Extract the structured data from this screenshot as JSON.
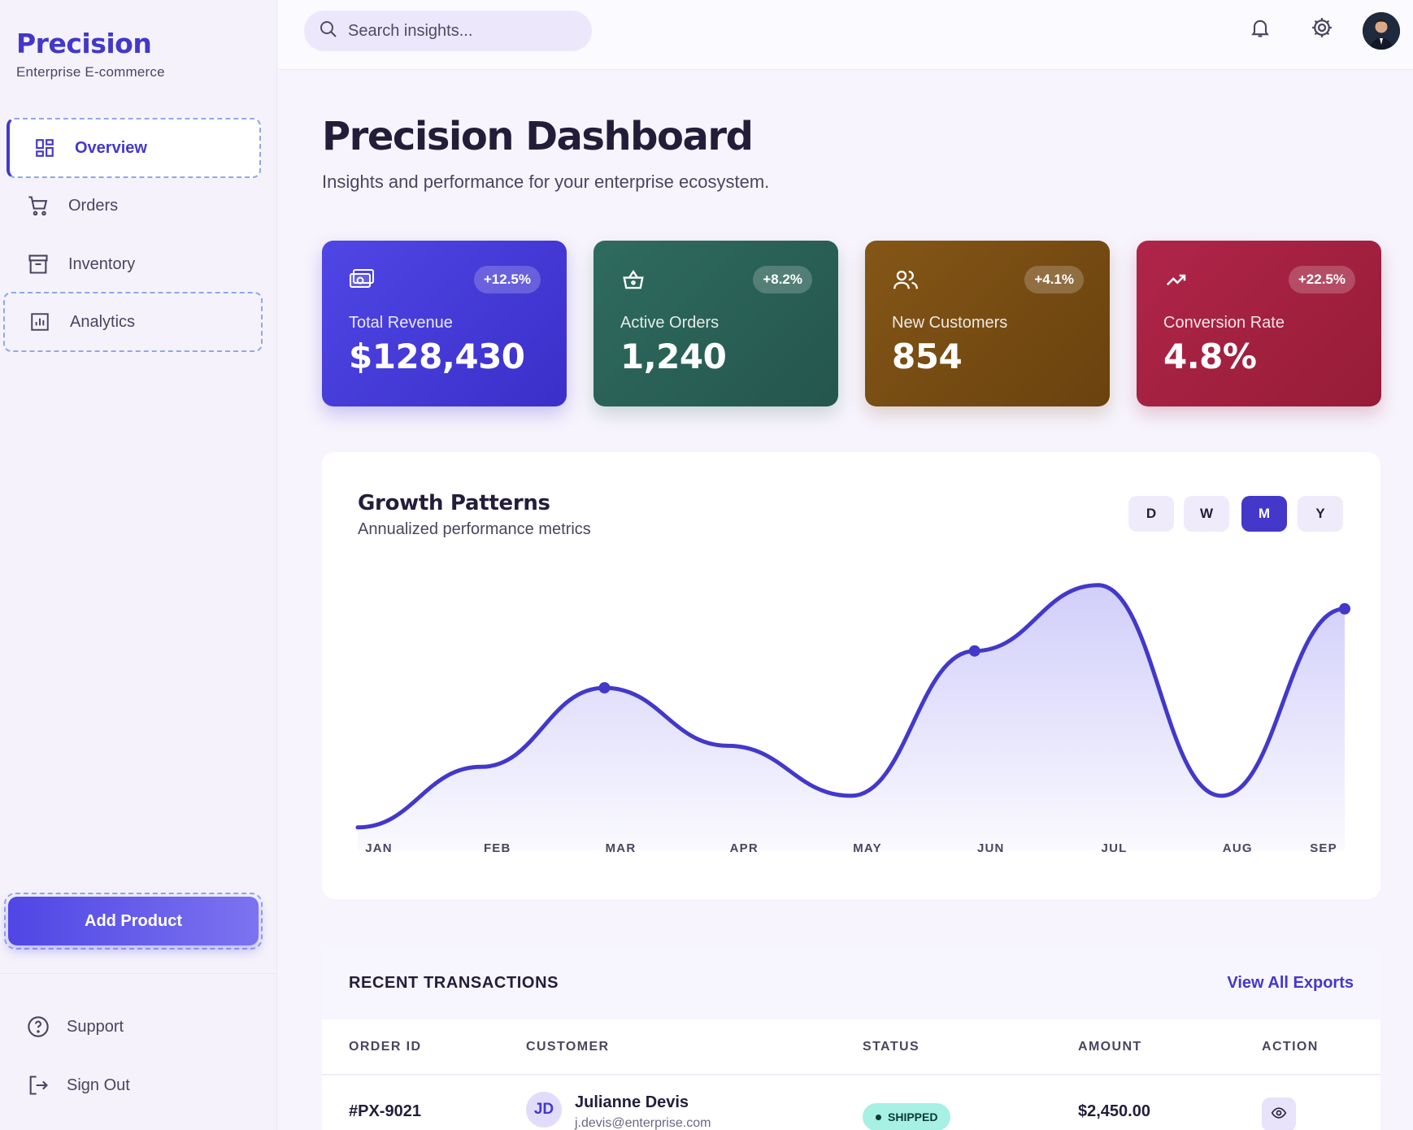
{
  "brand": {
    "title": "Precision",
    "subtitle": "Enterprise E-commerce"
  },
  "sidebar": {
    "items": [
      {
        "label": "Overview",
        "icon": "dashboard-icon",
        "active": true
      },
      {
        "label": "Orders",
        "icon": "cart-icon"
      },
      {
        "label": "Inventory",
        "icon": "archive-icon"
      },
      {
        "label": "Analytics",
        "icon": "bar-chart-icon"
      }
    ],
    "add_button": "Add Product",
    "footer": [
      {
        "label": "Support",
        "icon": "help-icon"
      },
      {
        "label": "Sign Out",
        "icon": "logout-icon"
      }
    ]
  },
  "topbar": {
    "search_placeholder": "Search insights...",
    "icons": [
      "bell-icon",
      "gear-icon",
      "avatar"
    ]
  },
  "header": {
    "title": "Precision Dashboard",
    "subtitle": "Insights and performance for your enterprise ecosystem."
  },
  "stats": [
    {
      "label": "Total Revenue",
      "value": "$128,430",
      "change": "+12.5%",
      "icon": "money-icon",
      "color": "#4338ca"
    },
    {
      "label": "Active Orders",
      "value": "1,240",
      "change": "+8.2%",
      "icon": "basket-icon",
      "color": "#2a6055"
    },
    {
      "label": "New Customers",
      "value": "854",
      "change": "+4.1%",
      "icon": "users-icon",
      "color": "#7a4e14"
    },
    {
      "label": "Conversion Rate",
      "value": "4.8%",
      "change": "+22.5%",
      "icon": "trend-up-icon",
      "color": "#a3213d"
    }
  ],
  "growth": {
    "title": "Growth Patterns",
    "subtitle": "Annualized performance metrics",
    "ranges": [
      "D",
      "W",
      "M",
      "Y"
    ],
    "selected_range": "M"
  },
  "chart_data": {
    "type": "area",
    "categories": [
      "JAN",
      "FEB",
      "MAR",
      "APR",
      "MAY",
      "JUN",
      "JUL",
      "AUG",
      "SEP"
    ],
    "series": [
      {
        "values": [
          5,
          28,
          58,
          36,
          17,
          72,
          97,
          17,
          88
        ]
      }
    ],
    "ylim": [
      0,
      100
    ],
    "grid": false,
    "color": "#4338ca"
  },
  "transactions": {
    "title": "RECENT TRANSACTIONS",
    "link": "View All Exports",
    "columns": [
      "ORDER ID",
      "CUSTOMER",
      "STATUS",
      "AMOUNT",
      "ACTION"
    ],
    "rows": [
      {
        "order_id": "#PX-9021",
        "initials": "JD",
        "customer": "Julianne Devis",
        "email": "j.devis@enterprise.com",
        "status": "SHIPPED",
        "amount": "$2,450.00"
      }
    ]
  }
}
